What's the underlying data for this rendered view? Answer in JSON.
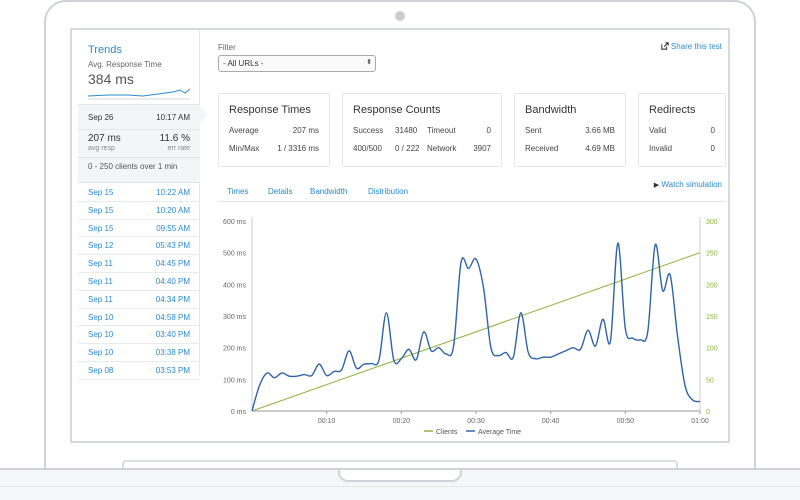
{
  "sidebar": {
    "trends_title": "Trends",
    "avg_response_label": "Avg. Response Time",
    "avg_response_value": "384 ms",
    "selected": {
      "date": "Sep 26",
      "time": "10:17 AM",
      "resp_value": "207 ms",
      "resp_label": "avg resp",
      "err_value": "11.6 %",
      "err_label": "err rate",
      "clients_text": "0  -  250 clients over 1 min"
    },
    "items": [
      {
        "date": "Sep 15",
        "time": "10:22 AM"
      },
      {
        "date": "Sep 15",
        "time": "10:20 AM"
      },
      {
        "date": "Sep 15",
        "time": "09:55 AM"
      },
      {
        "date": "Sep 12",
        "time": "05:43 PM"
      },
      {
        "date": "Sep 11",
        "time": "04:45 PM"
      },
      {
        "date": "Sep 11",
        "time": "04:40 PM"
      },
      {
        "date": "Sep 11",
        "time": "04:34 PM"
      },
      {
        "date": "Sep 10",
        "time": "04:58 PM"
      },
      {
        "date": "Sep 10",
        "time": "03:40 PM"
      },
      {
        "date": "Sep 10",
        "time": "03:38 PM"
      },
      {
        "date": "Sep 08",
        "time": "03:53 PM"
      }
    ]
  },
  "filter": {
    "label": "Filter",
    "selected": "- All URLs -"
  },
  "share_label": "Share this test",
  "cards": {
    "response_times": {
      "title": "Response Times",
      "average_label": "Average",
      "average_value": "207 ms",
      "minmax_label": "Min/Max",
      "minmax_value": "1 / 3316 ms"
    },
    "response_counts": {
      "title": "Response Counts",
      "success_label": "Success",
      "success_value": "31480",
      "timeout_label": "Timeout",
      "timeout_value": "0",
      "code_label": "400/500",
      "code_value": "0 / 222",
      "network_label": "Network",
      "network_value": "3907"
    },
    "bandwidth": {
      "title": "Bandwidth",
      "sent_label": "Sent",
      "sent_value": "3.66 MB",
      "received_label": "Received",
      "received_value": "4.69 MB"
    },
    "redirects": {
      "title": "Redirects",
      "valid_label": "Valid",
      "valid_value": "0",
      "invalid_label": "Invalid",
      "invalid_value": "0"
    }
  },
  "tabs": [
    "Times",
    "Details",
    "Bandwidth",
    "Distribution"
  ],
  "watch_label": "Watch simulation",
  "colors": {
    "accent": "#2a8bd0",
    "clients_line": "#8fb33b",
    "avg_time_line": "#2f64a8"
  },
  "icons": {
    "share": "share-icon",
    "play": "play-icon"
  },
  "chart_data": {
    "type": "line",
    "x_ticks": [
      "00:10",
      "00:20",
      "00:30",
      "00:40",
      "00:50",
      "01:00"
    ],
    "y_left_ticks": [
      "0 ms",
      "100 ms",
      "200 ms",
      "300 ms",
      "400 ms",
      "500 ms",
      "600 ms"
    ],
    "y_right_ticks": [
      "0",
      "50",
      "100",
      "150",
      "200",
      "250",
      "300"
    ],
    "ylim_left": [
      0,
      600
    ],
    "ylim_right": [
      0,
      300
    ],
    "xlim_seconds": [
      0,
      60
    ],
    "grid": false,
    "legend_position": "bottom-center",
    "series": [
      {
        "name": "Clients",
        "axis": "right",
        "x": [
          0,
          60
        ],
        "values": [
          0,
          250
        ]
      },
      {
        "name": "Average Time",
        "axis": "left",
        "x": [
          0,
          1,
          2,
          3,
          4,
          5,
          6,
          7,
          8,
          9,
          10,
          11,
          12,
          13,
          14,
          15,
          16,
          17,
          18,
          19,
          20,
          21,
          22,
          23,
          24,
          25,
          26,
          27,
          28,
          29,
          30,
          31,
          32,
          33,
          34,
          35,
          36,
          37,
          38,
          39,
          40,
          41,
          42,
          43,
          44,
          45,
          46,
          47,
          48,
          49,
          50,
          51,
          52,
          53,
          54,
          55,
          56,
          57,
          58,
          59,
          60
        ],
        "values": [
          0,
          80,
          120,
          105,
          120,
          110,
          110,
          115,
          112,
          148,
          112,
          125,
          130,
          190,
          135,
          148,
          150,
          160,
          310,
          160,
          165,
          195,
          162,
          250,
          190,
          200,
          180,
          205,
          470,
          450,
          480,
          390,
          200,
          175,
          185,
          170,
          310,
          185,
          165,
          170,
          170,
          180,
          190,
          200,
          195,
          255,
          205,
          290,
          220,
          530,
          260,
          230,
          225,
          250,
          525,
          380,
          430,
          235,
          80,
          35,
          30
        ]
      }
    ]
  }
}
